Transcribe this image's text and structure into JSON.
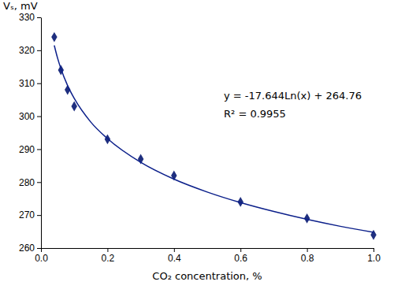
{
  "chart_data": {
    "type": "scatter",
    "x_label": "CO₂ concentration, %",
    "y_label": "Vₛ, mV",
    "annotations": [
      "y = -17.644Ln(x) + 264.76",
      "R² = 0.9955"
    ],
    "xlim": [
      0,
      1
    ],
    "xticks": [
      {
        "value": 0,
        "label": "0.0"
      },
      0.2,
      0.4,
      0.6,
      0.8,
      {
        "value": 1,
        "label": "1.0"
      }
    ],
    "ylim": [
      260,
      330
    ],
    "yticks": [
      260,
      270,
      280,
      290,
      300,
      310,
      320,
      330
    ],
    "grid": false,
    "series": [
      {
        "type": "scatter",
        "color": "#1f2f7f",
        "marker": "diamond",
        "x": [
          0.04,
          0.06,
          0.08,
          0.1,
          0.2,
          0.3,
          0.4,
          0.6,
          0.8,
          1.0
        ],
        "values": [
          324,
          314,
          308,
          303,
          293,
          287,
          282,
          274,
          269,
          264
        ]
      },
      {
        "type": "line",
        "color": "#0b1f8a",
        "line_style": "solid",
        "x": [
          0.04,
          0.05,
          0.06,
          0.08,
          0.1,
          0.15,
          0.2,
          0.3,
          0.4,
          0.5,
          0.6,
          0.7,
          0.8,
          0.9,
          1.0
        ],
        "values": [
          321.5,
          317.6,
          314.4,
          309.3,
          305.4,
          298.2,
          293.2,
          286.0,
          280.9,
          277.0,
          273.8,
          271.1,
          268.7,
          266.6,
          264.8
        ]
      }
    ]
  }
}
